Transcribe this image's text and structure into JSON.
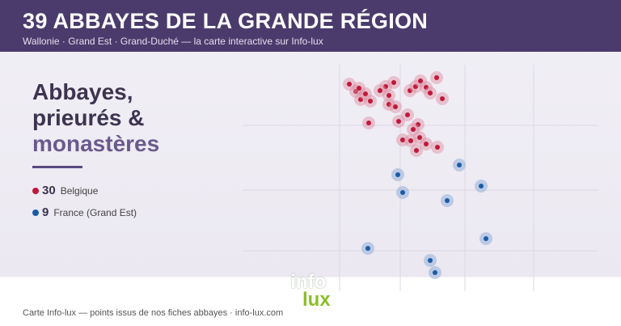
{
  "header": {
    "title": "39 ABBAYES DE LA GRANDE RÉGION",
    "subtitle": "Wallonie · Grand Est · Grand-Duché — la carte interactive sur Info-lux"
  },
  "headline": {
    "line1": "Abbayes,",
    "line2": "prieurés &",
    "line3": "monastères"
  },
  "legend": [
    {
      "count": "30",
      "label": "Belgique"
    },
    {
      "count": "9",
      "label": "France (Grand Est)"
    }
  ],
  "logo": {
    "top": "info",
    "bottom": "lux"
  },
  "footer": "Carte Info-lux — points issus de nos fiches abbayes · info-lux.com"
}
